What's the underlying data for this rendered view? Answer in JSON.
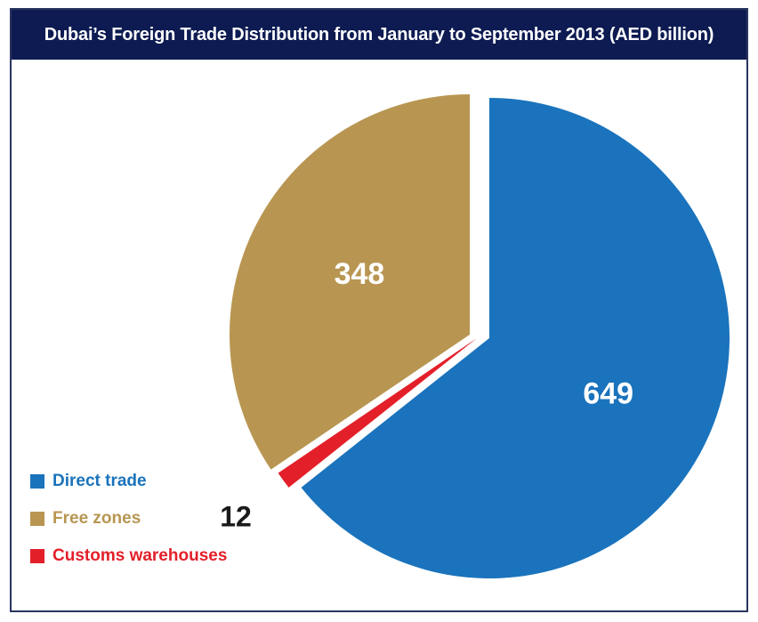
{
  "chart_data": {
    "type": "pie",
    "title": "Dubai’s Foreign Trade Distribution from January to September 2013 (AED billion)",
    "slices": [
      {
        "name": "Direct trade",
        "value": 649,
        "label": "649",
        "color": "#1a73bc",
        "label_color": "#ffffff"
      },
      {
        "name": "Customs warehouses",
        "value": 12,
        "label": "12",
        "color": "#e3202a",
        "label_color": "#1a1a1a"
      },
      {
        "name": "Free zones",
        "value": 348,
        "label": "348",
        "color": "#b89652",
        "label_color": "#ffffff"
      }
    ],
    "legend": {
      "placement": "bottom-left",
      "entries": [
        {
          "label": "Direct trade",
          "color": "#1a73bc"
        },
        {
          "label": "Free zones",
          "color": "#b89652"
        },
        {
          "label": "Customs warehouses",
          "color": "#e3202a"
        }
      ]
    }
  }
}
